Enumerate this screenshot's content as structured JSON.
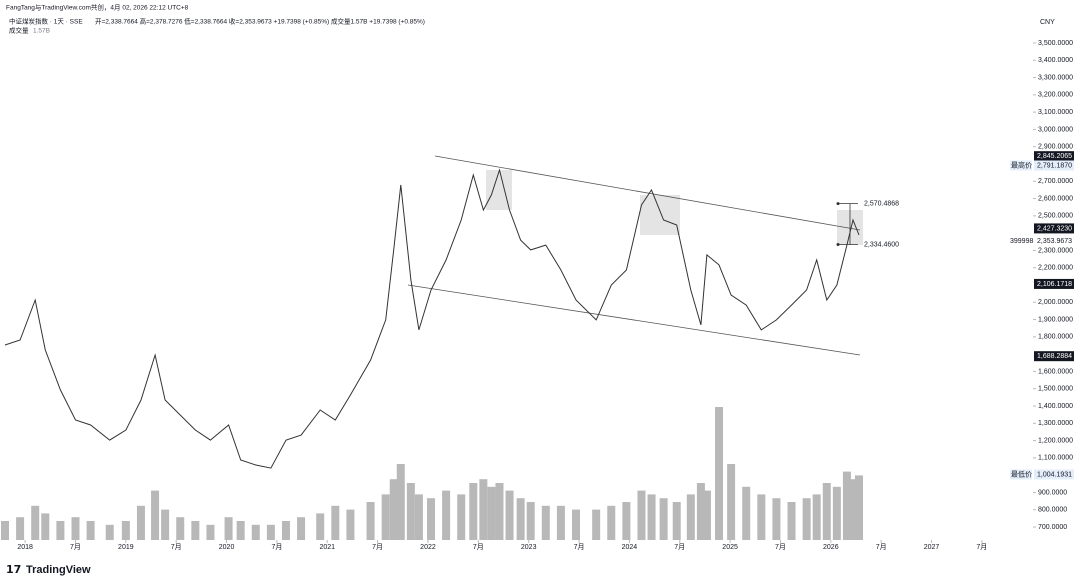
{
  "chart_data": {
    "type": "line",
    "credit": "FangTang与TradingView.com共创，4月 02, 2026 22:12 UTC+8",
    "title": "中证煤炭指数 · 1天 · SSE",
    "ohlc_text": "开=2,338.7664 高=2,378.7276 低=2,338.7664 收=2,353.9673 +19.7398 (+0.85%) 成交量1.57B +19.7398 (+0.85%)",
    "volume_label": "成交量",
    "volume_value": "1.57B",
    "currency": "CNY",
    "brand": "TradingView",
    "xlim": [
      2017.8,
      2027.68
    ],
    "xticks": [
      {
        "value": 2018,
        "label": "2018"
      },
      {
        "value": 2018.5,
        "label": "7月"
      },
      {
        "value": 2019,
        "label": "2019"
      },
      {
        "value": 2019.5,
        "label": "7月"
      },
      {
        "value": 2020,
        "label": "2020"
      },
      {
        "value": 2020.5,
        "label": "7月"
      },
      {
        "value": 2021,
        "label": "2021"
      },
      {
        "value": 2021.5,
        "label": "7月"
      },
      {
        "value": 2022,
        "label": "2022"
      },
      {
        "value": 2022.5,
        "label": "7月"
      },
      {
        "value": 2023,
        "label": "2023"
      },
      {
        "value": 2023.5,
        "label": "7月"
      },
      {
        "value": 2024,
        "label": "2024"
      },
      {
        "value": 2024.5,
        "label": "7月"
      },
      {
        "value": 2025,
        "label": "2025"
      },
      {
        "value": 2025.5,
        "label": "7月"
      },
      {
        "value": 2026,
        "label": "2026"
      },
      {
        "value": 2026.5,
        "label": "7月"
      },
      {
        "value": 2027,
        "label": "2027"
      },
      {
        "value": 2027.5,
        "label": "7月"
      }
    ],
    "ylim": [
      625,
      3575
    ],
    "yticks": [
      {
        "value": 3500,
        "label": "3,500.0000"
      },
      {
        "value": 3400,
        "label": "3,400.0000"
      },
      {
        "value": 3300,
        "label": "3,300.0000"
      },
      {
        "value": 3200,
        "label": "3,200.0000"
      },
      {
        "value": 3100,
        "label": "3,100.0000"
      },
      {
        "value": 3000,
        "label": "3,000.0000"
      },
      {
        "value": 2900,
        "label": "2,900.0000"
      },
      {
        "value": 2700,
        "label": "2,700.0000"
      },
      {
        "value": 2600,
        "label": "2,600.0000"
      },
      {
        "value": 2500,
        "label": "2,500.0000"
      },
      {
        "value": 2300,
        "label": "2,300.0000"
      },
      {
        "value": 2200,
        "label": "2,200.0000"
      },
      {
        "value": 2000,
        "label": "2,000.0000"
      },
      {
        "value": 1900,
        "label": "1,900.0000"
      },
      {
        "value": 1800,
        "label": "1,800.0000"
      },
      {
        "value": 1600,
        "label": "1,600.0000"
      },
      {
        "value": 1500,
        "label": "1,500.0000"
      },
      {
        "value": 1400,
        "label": "1,400.0000"
      },
      {
        "value": 1300,
        "label": "1,300.0000"
      },
      {
        "value": 1200,
        "label": "1,200.0000"
      },
      {
        "value": 1100,
        "label": "1,100.0000"
      },
      {
        "value": 900,
        "label": "900.0000"
      },
      {
        "value": 800,
        "label": "800.0000"
      },
      {
        "value": 700,
        "label": "700.0000"
      }
    ],
    "y2lim": [
      0,
      10
    ],
    "series": [
      {
        "name": "中证煤炭指数",
        "color": "#333333",
        "x": [
          2017.8,
          2017.95,
          2018.1,
          2018.2,
          2018.35,
          2018.5,
          2018.65,
          2018.84,
          2019.0,
          2019.15,
          2019.29,
          2019.39,
          2019.54,
          2019.69,
          2019.84,
          2020.02,
          2020.14,
          2020.29,
          2020.44,
          2020.59,
          2020.74,
          2020.93,
          2021.08,
          2021.23,
          2021.43,
          2021.58,
          2021.66,
          2021.73,
          2021.83,
          2021.91,
          2022.03,
          2022.18,
          2022.33,
          2022.45,
          2022.55,
          2022.63,
          2022.71,
          2022.81,
          2022.92,
          2023.02,
          2023.17,
          2023.32,
          2023.47,
          2023.67,
          2023.82,
          2023.97,
          2024.12,
          2024.22,
          2024.34,
          2024.47,
          2024.61,
          2024.71,
          2024.77,
          2024.89,
          2025.01,
          2025.16,
          2025.31,
          2025.46,
          2025.61,
          2025.76,
          2025.86,
          2025.96,
          2026.06,
          2026.16,
          2026.22,
          2026.28
        ],
        "values": [
          1753,
          1782,
          2013,
          1724,
          1493,
          1319,
          1290,
          1203,
          1261,
          1435,
          1695,
          1435,
          1348,
          1261,
          1203,
          1290,
          1088,
          1059,
          1041,
          1203,
          1232,
          1377,
          1319,
          1464,
          1666,
          1898,
          2303,
          2679,
          2129,
          1840,
          2071,
          2245,
          2476,
          2736,
          2534,
          2621,
          2765,
          2534,
          2360,
          2303,
          2331,
          2187,
          2013,
          1898,
          2100,
          2187,
          2563,
          2650,
          2476,
          2447,
          2071,
          1869,
          2274,
          2216,
          2042,
          1984,
          1840,
          1898,
          1984,
          2071,
          2245,
          2013,
          2100,
          2331,
          2476,
          2389
        ]
      },
      {
        "name": "成交量",
        "color": "#b8b8b8",
        "axis": "y2",
        "x": [
          2017.8,
          2017.95,
          2018.1,
          2018.2,
          2018.35,
          2018.5,
          2018.65,
          2018.84,
          2019.0,
          2019.15,
          2019.29,
          2019.39,
          2019.54,
          2019.69,
          2019.84,
          2020.02,
          2020.14,
          2020.29,
          2020.44,
          2020.59,
          2020.74,
          2020.93,
          2021.08,
          2021.23,
          2021.43,
          2021.58,
          2021.66,
          2021.73,
          2021.83,
          2021.91,
          2022.03,
          2022.18,
          2022.33,
          2022.45,
          2022.55,
          2022.63,
          2022.71,
          2022.81,
          2022.92,
          2023.02,
          2023.17,
          2023.32,
          2023.47,
          2023.67,
          2023.82,
          2023.97,
          2024.12,
          2024.22,
          2024.34,
          2024.47,
          2024.61,
          2024.71,
          2024.77,
          2024.89,
          2025.01,
          2025.16,
          2025.31,
          2025.46,
          2025.61,
          2025.76,
          2025.86,
          2025.96,
          2026.06,
          2026.16,
          2026.22,
          2026.28
        ],
        "values": [
          0.5,
          0.6,
          0.9,
          0.7,
          0.5,
          0.6,
          0.5,
          0.4,
          0.5,
          0.9,
          1.3,
          0.8,
          0.6,
          0.5,
          0.4,
          0.6,
          0.5,
          0.4,
          0.4,
          0.5,
          0.6,
          0.7,
          0.9,
          0.8,
          1.0,
          1.2,
          1.6,
          2.0,
          1.5,
          1.2,
          1.1,
          1.3,
          1.2,
          1.5,
          1.6,
          1.4,
          1.5,
          1.3,
          1.1,
          1.0,
          0.9,
          0.9,
          0.8,
          0.8,
          0.9,
          1.0,
          1.3,
          1.2,
          1.1,
          1.0,
          1.2,
          1.5,
          1.3,
          3.5,
          2.0,
          1.4,
          1.2,
          1.1,
          1.0,
          1.1,
          1.2,
          1.5,
          1.4,
          1.8,
          1.6,
          1.7
        ]
      }
    ],
    "price_markers": [
      {
        "value": 2845.2065,
        "label": "2,845.2065",
        "style": "dark"
      },
      {
        "value": 2791.187,
        "label": "2,791.1870",
        "style": "light",
        "tag": "最高价"
      },
      {
        "value": 2427.323,
        "label": "2,427.3230",
        "style": "dark"
      },
      {
        "value": 2353.9673,
        "label": "2,353.9673",
        "style": "plain",
        "tag": "399998"
      },
      {
        "value": 2106.1718,
        "label": "2,106.1718",
        "style": "dark"
      },
      {
        "value": 1688.2884,
        "label": "1,688.2884",
        "style": "dark"
      },
      {
        "value": 1004.1931,
        "label": "1,004.1931",
        "style": "light",
        "tag": "最低价"
      }
    ],
    "measure": [
      {
        "value": 2570.4868,
        "label": "2,570.4868"
      },
      {
        "value": 2334.46,
        "label": "2,334.4600"
      }
    ]
  }
}
